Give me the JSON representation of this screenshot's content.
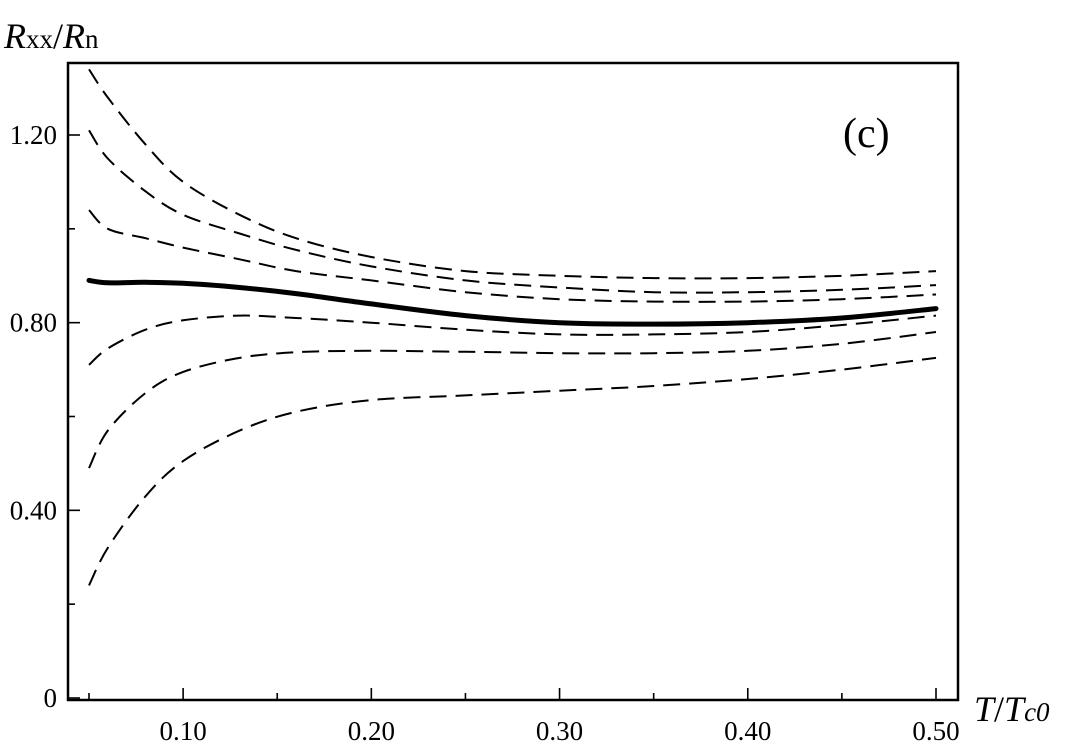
{
  "chart_data": {
    "type": "line",
    "title": "",
    "panel_label": "(c)",
    "xlabel": {
      "italic": "T",
      "slash": "/",
      "italic2": "T",
      "sub": "c0"
    },
    "ylabel": {
      "italic": "R",
      "sub": "xx",
      "slash": "/",
      "italic2": "R",
      "sub2": "n"
    },
    "xlim": [
      0.05,
      0.5
    ],
    "ylim": [
      0,
      1.35
    ],
    "x_major_ticks": [
      0.1,
      0.2,
      0.3,
      0.4,
      0.5
    ],
    "x_major_labels": [
      "0.10",
      "0.20",
      "0.30",
      "0.40",
      "0.50"
    ],
    "x_minor_ticks": [
      0.05,
      0.15,
      0.25,
      0.35,
      0.45
    ],
    "y_major_ticks": [
      0,
      0.4,
      0.8,
      1.2
    ],
    "y_major_labels": [
      "0",
      "0.40",
      "0.80",
      "1.20"
    ],
    "y_minor_ticks": [
      0.2,
      0.6,
      1.0
    ],
    "grid": false,
    "legend": "none",
    "x": [
      0.05,
      0.06,
      0.08,
      0.1,
      0.13,
      0.16,
      0.2,
      0.25,
      0.3,
      0.35,
      0.4,
      0.45,
      0.5
    ],
    "series": [
      {
        "style": "dashed",
        "values": [
          1.34,
          1.28,
          1.18,
          1.1,
          1.03,
          0.98,
          0.94,
          0.91,
          0.9,
          0.895,
          0.895,
          0.9,
          0.91
        ]
      },
      {
        "style": "dashed",
        "values": [
          1.21,
          1.15,
          1.08,
          1.03,
          0.99,
          0.955,
          0.92,
          0.89,
          0.875,
          0.865,
          0.865,
          0.87,
          0.88
        ]
      },
      {
        "style": "dashed",
        "values": [
          1.04,
          1.0,
          0.98,
          0.96,
          0.935,
          0.91,
          0.89,
          0.865,
          0.85,
          0.845,
          0.845,
          0.85,
          0.86
        ]
      },
      {
        "style": "solid",
        "values": [
          0.89,
          0.885,
          0.886,
          0.884,
          0.875,
          0.862,
          0.84,
          0.815,
          0.8,
          0.797,
          0.8,
          0.81,
          0.83
        ]
      },
      {
        "style": "dashed",
        "values": [
          0.71,
          0.745,
          0.785,
          0.805,
          0.815,
          0.81,
          0.8,
          0.785,
          0.775,
          0.775,
          0.78,
          0.795,
          0.815
        ]
      },
      {
        "style": "dashed",
        "values": [
          0.49,
          0.57,
          0.65,
          0.695,
          0.725,
          0.737,
          0.74,
          0.738,
          0.735,
          0.735,
          0.74,
          0.755,
          0.78
        ]
      },
      {
        "style": "dashed",
        "values": [
          0.24,
          0.32,
          0.43,
          0.505,
          0.57,
          0.61,
          0.635,
          0.645,
          0.655,
          0.665,
          0.68,
          0.7,
          0.725
        ]
      }
    ]
  }
}
